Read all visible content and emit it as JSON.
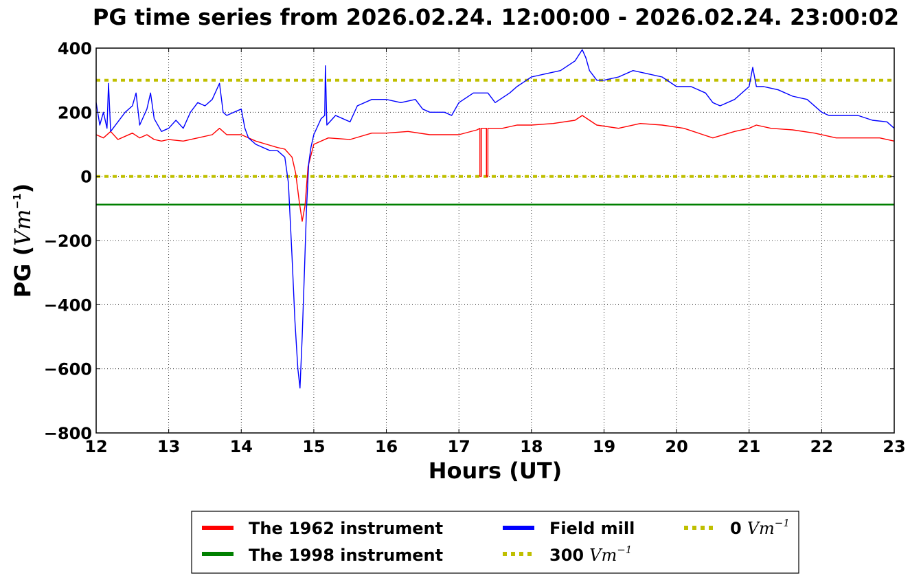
{
  "chart_data": {
    "type": "line",
    "title": "PG time series from 2026.02.24. 12:00:00 - 2026.02.24. 23:00:02",
    "xlabel": "Hours (UT)",
    "ylabel": "PG (",
    "ylabel_unit": "Vm",
    "ylabel_unit_exp": "−1",
    "ylabel_close": ")",
    "xlim": [
      12,
      23
    ],
    "ylim": [
      -800,
      400
    ],
    "xticks": [
      12,
      13,
      14,
      15,
      16,
      17,
      18,
      19,
      20,
      21,
      22,
      23
    ],
    "yticks": [
      -800,
      -600,
      -400,
      -200,
      0,
      200,
      400
    ],
    "grid": true,
    "legend_position": "bottom-center",
    "series": [
      {
        "name": "The 1962 instrument",
        "color": "#ff0000",
        "style": "solid",
        "x": [
          12.0,
          12.1,
          12.2,
          12.3,
          12.4,
          12.5,
          12.6,
          12.7,
          12.8,
          12.9,
          13.0,
          13.2,
          13.4,
          13.6,
          13.7,
          13.8,
          14.0,
          14.2,
          14.35,
          14.5,
          14.6,
          14.7,
          14.75,
          14.8,
          14.84,
          14.88,
          14.92,
          15.0,
          15.2,
          15.5,
          15.8,
          16.0,
          16.3,
          16.6,
          17.0,
          17.25,
          17.29,
          17.29,
          17.31,
          17.31,
          17.38,
          17.38,
          17.4,
          17.4,
          17.6,
          17.8,
          18.0,
          18.3,
          18.6,
          18.7,
          18.9,
          19.2,
          19.5,
          19.8,
          20.1,
          20.5,
          20.8,
          21.0,
          21.1,
          21.3,
          21.6,
          21.9,
          22.2,
          22.5,
          22.8,
          23.0
        ],
        "y": [
          130,
          120,
          140,
          115,
          125,
          135,
          120,
          130,
          115,
          110,
          115,
          110,
          120,
          130,
          150,
          130,
          130,
          110,
          100,
          90,
          85,
          60,
          10,
          -80,
          -140,
          -90,
          30,
          100,
          120,
          115,
          135,
          135,
          140,
          130,
          130,
          145,
          150,
          0,
          0,
          150,
          150,
          0,
          0,
          150,
          150,
          160,
          160,
          165,
          175,
          190,
          160,
          150,
          165,
          160,
          150,
          120,
          140,
          150,
          160,
          150,
          145,
          135,
          120,
          120,
          120,
          110
        ]
      },
      {
        "name": "The 1998 instrument",
        "color": "#008000",
        "style": "solid",
        "x": [
          12,
          23
        ],
        "y": [
          -88,
          -88
        ]
      },
      {
        "name": "Field mill",
        "color": "#0000ff",
        "style": "solid",
        "x": [
          12.0,
          12.05,
          12.1,
          12.15,
          12.17,
          12.2,
          12.3,
          12.4,
          12.5,
          12.55,
          12.6,
          12.7,
          12.75,
          12.8,
          12.9,
          13.0,
          13.1,
          13.2,
          13.3,
          13.4,
          13.5,
          13.6,
          13.7,
          13.75,
          13.8,
          13.9,
          14.0,
          14.05,
          14.1,
          14.2,
          14.3,
          14.4,
          14.5,
          14.6,
          14.65,
          14.7,
          14.74,
          14.78,
          14.81,
          14.84,
          14.87,
          14.9,
          14.93,
          14.96,
          15.0,
          15.1,
          15.15,
          15.16,
          15.18,
          15.3,
          15.4,
          15.5,
          15.6,
          15.8,
          16.0,
          16.2,
          16.4,
          16.5,
          16.6,
          16.8,
          16.9,
          17.0,
          17.2,
          17.4,
          17.5,
          17.7,
          17.8,
          18.0,
          18.2,
          18.4,
          18.6,
          18.7,
          18.75,
          18.8,
          18.9,
          19.0,
          19.2,
          19.4,
          19.6,
          19.8,
          20.0,
          20.2,
          20.4,
          20.5,
          20.6,
          20.8,
          21.0,
          21.05,
          21.1,
          21.2,
          21.4,
          21.6,
          21.8,
          22.0,
          22.1,
          22.3,
          22.5,
          22.7,
          22.9,
          23.0
        ],
        "y": [
          230,
          160,
          200,
          150,
          290,
          140,
          170,
          200,
          220,
          260,
          160,
          210,
          260,
          180,
          140,
          150,
          175,
          150,
          200,
          230,
          220,
          240,
          290,
          200,
          190,
          200,
          210,
          150,
          120,
          100,
          90,
          80,
          80,
          60,
          -20,
          -250,
          -450,
          -600,
          -660,
          -500,
          -300,
          -100,
          40,
          90,
          130,
          180,
          190,
          345,
          160,
          190,
          180,
          170,
          220,
          240,
          240,
          230,
          240,
          210,
          200,
          200,
          190,
          230,
          260,
          260,
          230,
          260,
          280,
          310,
          320,
          330,
          360,
          395,
          370,
          330,
          300,
          300,
          310,
          330,
          320,
          310,
          280,
          280,
          260,
          230,
          220,
          240,
          280,
          340,
          280,
          280,
          270,
          250,
          240,
          200,
          190,
          190,
          190,
          175,
          170,
          150
        ]
      },
      {
        "name": "300 Vm^-1",
        "legend_value": "300",
        "legend_unit": "Vm",
        "legend_exp": "−1",
        "color": "#bfbf00",
        "style": "dotted",
        "x": [
          12,
          23
        ],
        "y": [
          300,
          300
        ]
      },
      {
        "name": "0 Vm^-1",
        "legend_value": "0",
        "legend_unit": "Vm",
        "legend_exp": "−1",
        "color": "#bfbf00",
        "style": "dotted",
        "x": [
          12,
          23
        ],
        "y": [
          0,
          0
        ]
      }
    ],
    "legend": {
      "entries": [
        {
          "label": "The 1962 instrument"
        },
        {
          "label": "The 1998 instrument"
        },
        {
          "label": "Field mill"
        }
      ]
    }
  }
}
